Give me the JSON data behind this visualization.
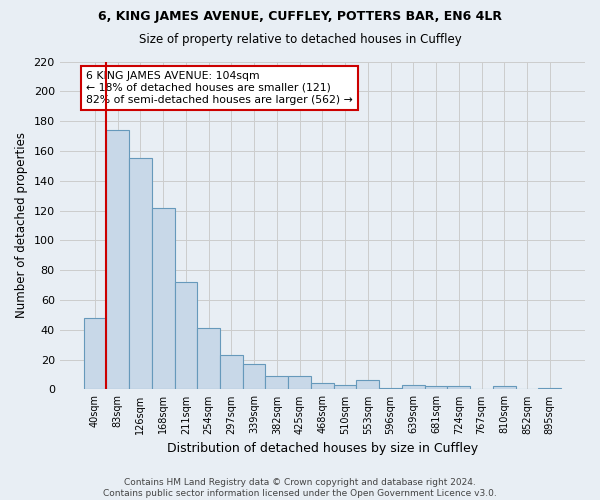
{
  "title1": "6, KING JAMES AVENUE, CUFFLEY, POTTERS BAR, EN6 4LR",
  "title2": "Size of property relative to detached houses in Cuffley",
  "xlabel": "Distribution of detached houses by size in Cuffley",
  "ylabel": "Number of detached properties",
  "footnote1": "Contains HM Land Registry data © Crown copyright and database right 2024.",
  "footnote2": "Contains public sector information licensed under the Open Government Licence v3.0.",
  "bin_labels": [
    "40sqm",
    "83sqm",
    "126sqm",
    "168sqm",
    "211sqm",
    "254sqm",
    "297sqm",
    "339sqm",
    "382sqm",
    "425sqm",
    "468sqm",
    "510sqm",
    "553sqm",
    "596sqm",
    "639sqm",
    "681sqm",
    "724sqm",
    "767sqm",
    "810sqm",
    "852sqm",
    "895sqm"
  ],
  "bar_values": [
    48,
    174,
    155,
    122,
    72,
    41,
    23,
    17,
    9,
    9,
    4,
    3,
    6,
    1,
    3,
    2,
    2,
    0,
    2,
    0,
    1
  ],
  "bar_color": "#c8d8e8",
  "bar_edge_color": "#6699bb",
  "grid_color": "#cccccc",
  "bg_color": "#e8eef4",
  "annotation_text": "6 KING JAMES AVENUE: 104sqm\n← 18% of detached houses are smaller (121)\n82% of semi-detached houses are larger (562) →",
  "annotation_box_color": "#ffffff",
  "annotation_border_color": "#cc0000",
  "red_line_color": "#cc0000",
  "red_line_bin_index": 1,
  "ylim": [
    0,
    220
  ],
  "yticks": [
    0,
    20,
    40,
    60,
    80,
    100,
    120,
    140,
    160,
    180,
    200,
    220
  ]
}
